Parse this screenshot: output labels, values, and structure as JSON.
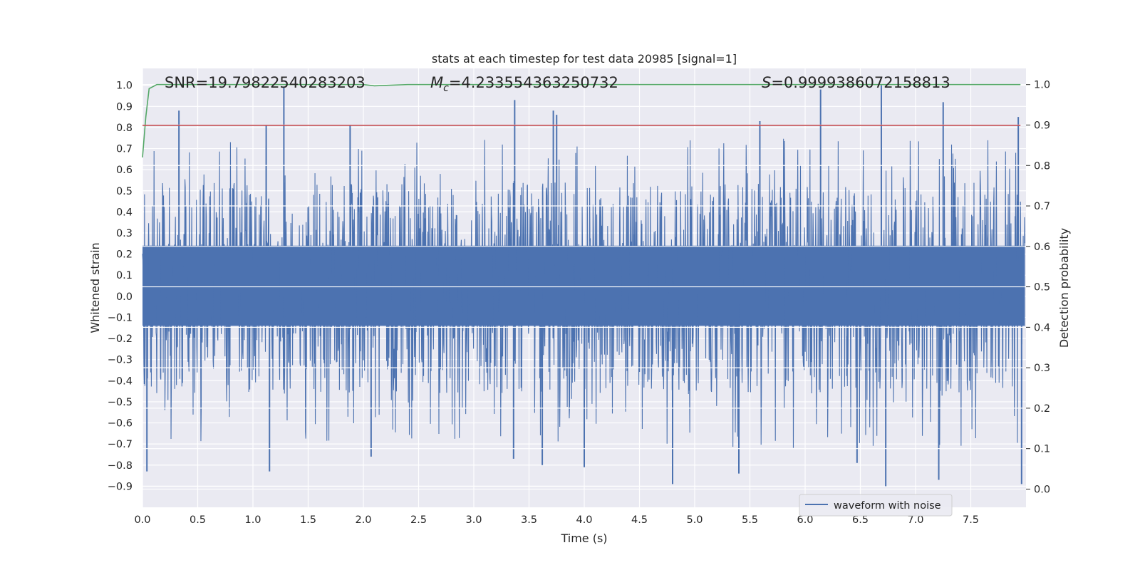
{
  "chart_data": {
    "type": "line",
    "title": "stats at each timestep for test data 20985 [signal=1]",
    "xlabel": "Time (s)",
    "ylabel": "Whitened strain",
    "y2label": "Detection probability",
    "xlim": [
      0.0,
      8.0
    ],
    "ylim": [
      -1.0,
      1.08
    ],
    "y2lim": [
      -0.045,
      1.04
    ],
    "xticks": [
      0.0,
      0.5,
      1.0,
      1.5,
      2.0,
      2.5,
      3.0,
      3.5,
      4.0,
      4.5,
      5.0,
      5.5,
      6.0,
      6.5,
      7.0,
      7.5
    ],
    "xtick_labels": [
      "0.0",
      "0.5",
      "1.0",
      "1.5",
      "2.0",
      "2.5",
      "3.0",
      "3.5",
      "4.0",
      "4.5",
      "5.0",
      "5.5",
      "6.0",
      "6.5",
      "7.0",
      "7.5"
    ],
    "yticks": [
      -0.9,
      -0.8,
      -0.7,
      -0.6,
      -0.5,
      -0.4,
      -0.3,
      -0.2,
      -0.1,
      0.0,
      0.1,
      0.2,
      0.3,
      0.4,
      0.5,
      0.6,
      0.7,
      0.8,
      0.9,
      1.0
    ],
    "ytick_labels": [
      "−0.9",
      "−0.8",
      "−0.7",
      "−0.6",
      "−0.5",
      "−0.4",
      "−0.3",
      "−0.2",
      "−0.1",
      "0.0",
      "0.1",
      "0.2",
      "0.3",
      "0.4",
      "0.5",
      "0.6",
      "0.7",
      "0.8",
      "0.9",
      "1.0"
    ],
    "y2ticks": [
      0.0,
      0.1,
      0.2,
      0.3,
      0.4,
      0.5,
      0.6,
      0.7,
      0.8,
      0.9,
      1.0
    ],
    "y2tick_labels": [
      "0.0",
      "0.1",
      "0.2",
      "0.3",
      "0.4",
      "0.5",
      "0.6",
      "0.7",
      "0.8",
      "0.9",
      "1.0"
    ],
    "grid": true,
    "legend_position": "lower-right",
    "annotations": [
      {
        "text": "SNR=19.79822540283203",
        "x": 0.2,
        "y": 1.0
      },
      {
        "text": "Mc=4.233554363250732",
        "x": 2.6,
        "y": 1.0
      },
      {
        "text": "S=0.9999386072158813",
        "x": 5.6,
        "y": 1.0
      }
    ],
    "series": [
      {
        "name": "waveform with noise",
        "axis": "left",
        "color": "#4c72b0",
        "style": "dense-noise",
        "t_range": [
          0.0,
          7.99
        ],
        "core_band": [
          -0.14,
          0.24
        ],
        "typical_peak_range": [
          -0.5,
          0.6
        ],
        "notable_peaks": [
          {
            "x": 1.28,
            "y": 0.99
          },
          {
            "x": 0.33,
            "y": 0.88
          },
          {
            "x": 3.37,
            "y": 0.93
          },
          {
            "x": 3.72,
            "y": 0.88
          },
          {
            "x": 3.75,
            "y": 0.86
          },
          {
            "x": 6.14,
            "y": 0.98
          },
          {
            "x": 6.69,
            "y": 1.0
          },
          {
            "x": 7.25,
            "y": 0.92
          },
          {
            "x": 7.93,
            "y": 0.85
          },
          {
            "x": 1.88,
            "y": 0.81
          },
          {
            "x": 1.12,
            "y": 0.81
          },
          {
            "x": 5.59,
            "y": 0.83
          },
          {
            "x": 0.04,
            "y": -0.83
          },
          {
            "x": 1.15,
            "y": -0.83
          },
          {
            "x": 4.8,
            "y": -0.89
          },
          {
            "x": 6.73,
            "y": -0.9
          },
          {
            "x": 7.21,
            "y": -0.87
          },
          {
            "x": 7.96,
            "y": -0.89
          },
          {
            "x": 5.4,
            "y": -0.84
          },
          {
            "x": 4.0,
            "y": -0.81
          },
          {
            "x": 3.62,
            "y": -0.8
          },
          {
            "x": 2.07,
            "y": -0.76
          },
          {
            "x": 3.36,
            "y": -0.77
          },
          {
            "x": 6.47,
            "y": -0.79
          }
        ]
      },
      {
        "name": "",
        "axis": "right",
        "color": "#55a868",
        "style": "line",
        "x": [
          0.0,
          0.03,
          0.06,
          0.13,
          0.3,
          1.0,
          1.5,
          2.0,
          2.1,
          2.4,
          3.0,
          4.0,
          5.0,
          6.0,
          7.0,
          7.95
        ],
        "y": [
          0.82,
          0.92,
          0.99,
          1.0,
          1.0,
          1.0,
          1.0,
          1.0,
          0.997,
          1.0,
          1.0,
          1.0,
          1.0,
          1.0,
          1.0,
          1.0
        ]
      },
      {
        "name": "",
        "axis": "left",
        "color": "#c44e52",
        "style": "line",
        "x": [
          0.0,
          7.95
        ],
        "y": [
          0.81,
          0.81
        ]
      }
    ]
  }
}
